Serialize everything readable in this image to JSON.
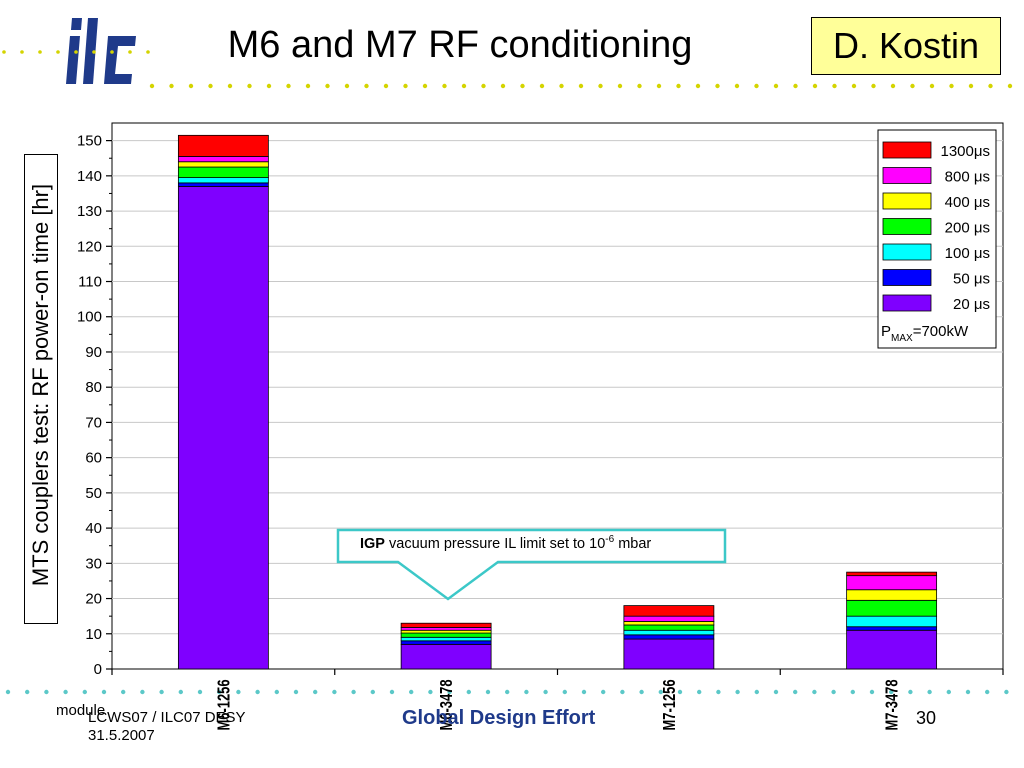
{
  "header": {
    "title": "M6 and M7 RF conditioning",
    "author": "D. Kostin",
    "logo_text": "ilc"
  },
  "footer": {
    "left_line1": "LCWS07 / ILC07 DESY",
    "left_line2": "31.5.2007",
    "module_label": "module",
    "center": "Global Design Effort",
    "page": "30"
  },
  "annotation": {
    "bold": "IGP",
    "text": " vacuum pressure IL limit set to 10",
    "exponent": "-6",
    "unit": " mbar"
  },
  "legend_note": {
    "p": "P",
    "sub": "MAX",
    "rest": "=700kW"
  },
  "colors": {
    "accent_teal": "#3cc8c8",
    "title_blue": "#1f3a8a",
    "author_bg": "#ffff99",
    "dot_yellow": "#d4d400",
    "dot_teal": "#5bc8c8"
  },
  "chart_data": {
    "type": "bar",
    "stacked": true,
    "ylabel": "MTS couplers test: RF power-on time [hr]",
    "xlabel": "",
    "ylim": [
      0,
      155
    ],
    "yticks": [
      0,
      10,
      20,
      30,
      40,
      50,
      60,
      70,
      80,
      90,
      100,
      110,
      120,
      130,
      140,
      150
    ],
    "grid": true,
    "legend_position": "top-right",
    "categories": [
      "M6-1256",
      "M6-3478",
      "M7-1256",
      "M7-3478"
    ],
    "series": [
      {
        "name": "20 μs",
        "color": "#7f00ff",
        "values": [
          137,
          7.0,
          8.5,
          11.0
        ]
      },
      {
        "name": "50 μs",
        "color": "#0000ff",
        "values": [
          1.0,
          1.0,
          1.2,
          1.0
        ]
      },
      {
        "name": "100 μs",
        "color": "#00ffff",
        "values": [
          1.5,
          1.0,
          1.3,
          3.0
        ]
      },
      {
        "name": "200 μs",
        "color": "#00ff00",
        "values": [
          3.0,
          1.2,
          1.5,
          4.5
        ]
      },
      {
        "name": "400 μs",
        "color": "#ffff00",
        "values": [
          1.5,
          0.8,
          1.0,
          3.0
        ]
      },
      {
        "name": "800 μs",
        "color": "#ff00ff",
        "values": [
          1.5,
          0.8,
          1.5,
          4.0
        ]
      },
      {
        "name": "1300μs",
        "color": "#ff0000",
        "values": [
          6.0,
          1.2,
          3.0,
          1.0
        ]
      }
    ]
  }
}
